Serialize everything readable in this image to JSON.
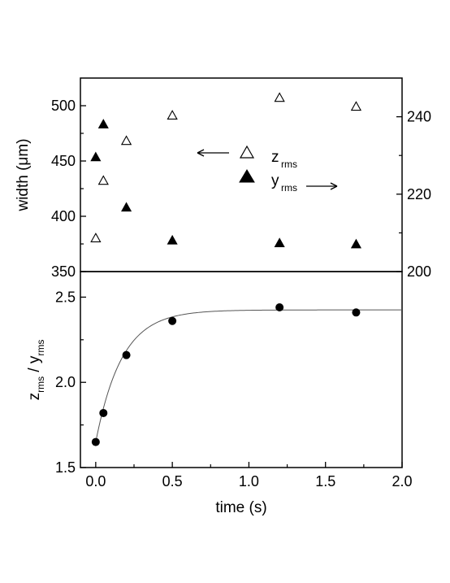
{
  "chart_data": [
    {
      "type": "scatter",
      "panel": "top",
      "xlim": [
        -0.1,
        2.0
      ],
      "ylabel": "width (μm)",
      "ylim": [
        350,
        525
      ],
      "yticks": [
        "350",
        "400",
        "450",
        "500"
      ],
      "y2lim": [
        200,
        250
      ],
      "y2ticks": [
        "200",
        "220",
        "240"
      ],
      "legend": {
        "placement": "center",
        "entries": [
          {
            "label_main": "z",
            "label_sub": "rms",
            "marker": "open-triangle",
            "arrow": "left"
          },
          {
            "label_main": "y",
            "label_sub": "rms",
            "marker": "filled-triangle",
            "arrow": "right"
          }
        ]
      },
      "series": [
        {
          "name": "zrms",
          "axis": "left",
          "marker": "open-triangle",
          "x": [
            0.0,
            0.05,
            0.2,
            0.5,
            1.2,
            1.7
          ],
          "y": [
            380,
            432,
            468,
            491,
            507,
            499
          ]
        },
        {
          "name": "yrms",
          "axis": "right",
          "marker": "filled-triangle",
          "x": [
            0.0,
            0.05,
            0.2,
            0.5,
            1.2,
            1.7
          ],
          "y": [
            229.5,
            238,
            216.5,
            208,
            207.3,
            207
          ]
        }
      ]
    },
    {
      "type": "scatter",
      "panel": "bottom",
      "xlabel": "time (s)",
      "xlim": [
        -0.1,
        2.0
      ],
      "xticks": [
        "0.0",
        "0.5",
        "1.0",
        "1.5",
        "2.0"
      ],
      "ylabel_parts": {
        "z": "z",
        "z_sub": "rms",
        "sep": " / ",
        "y": "y",
        "y_sub": "rms"
      },
      "ylim": [
        1.5,
        2.65
      ],
      "yticks": [
        "1.5",
        "2.0",
        "2.5"
      ],
      "series": [
        {
          "name": "ratio",
          "marker": "filled-circle",
          "x": [
            0.0,
            0.05,
            0.2,
            0.5,
            1.2,
            1.7
          ],
          "y": [
            1.65,
            1.82,
            2.16,
            2.36,
            2.44,
            2.41
          ]
        }
      ],
      "fit": {
        "type": "exponential",
        "y0": 1.65,
        "yinf": 2.425,
        "tau": 0.17
      }
    }
  ]
}
